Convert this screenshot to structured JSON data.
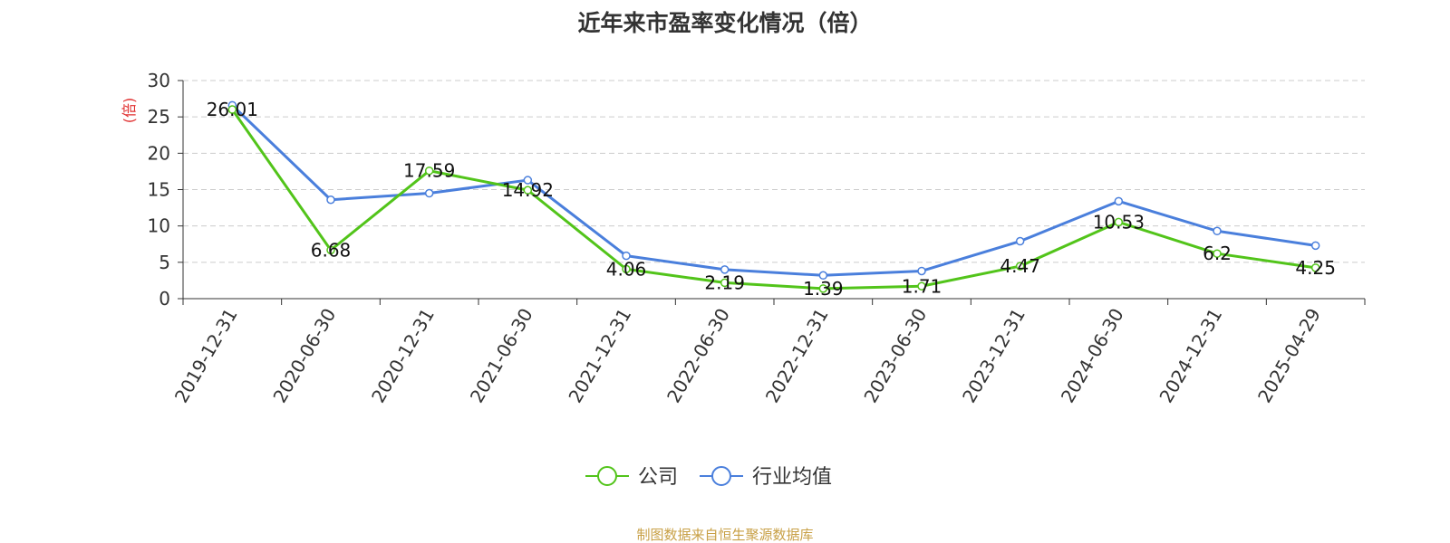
{
  "chart_data": {
    "type": "line",
    "title": "近年来市盈率变化情况（倍）",
    "ylabel": "(倍)",
    "xlabel": "",
    "ylim": [
      0,
      30
    ],
    "yticks": [
      0,
      5,
      10,
      15,
      20,
      25,
      30
    ],
    "grid": true,
    "legend_position": "bottom-center",
    "categories": [
      "2019-12-31",
      "2020-06-30",
      "2020-12-31",
      "2021-06-30",
      "2021-12-31",
      "2022-06-30",
      "2022-12-31",
      "2023-06-30",
      "2023-12-31",
      "2024-06-30",
      "2024-12-31",
      "2025-04-29"
    ],
    "series": [
      {
        "name": "公司",
        "color": "#52c41a",
        "values": [
          26.01,
          6.68,
          17.59,
          14.92,
          4.06,
          2.19,
          1.39,
          1.71,
          4.47,
          10.53,
          6.2,
          4.25
        ],
        "labels": [
          "26.01",
          "6.68",
          "17.59",
          "14.92",
          "4.06",
          "2.19",
          "1.39",
          "1.71",
          "4.47",
          "10.53",
          "6.2",
          "4.25"
        ]
      },
      {
        "name": "行业均值",
        "color": "#4a7fdc",
        "values": [
          26.6,
          13.6,
          14.5,
          16.3,
          5.9,
          4.0,
          3.2,
          3.8,
          7.9,
          13.4,
          9.3,
          7.3
        ]
      }
    ]
  },
  "colors": {
    "ylabel": "#e03030",
    "source_note": "#c8a046",
    "grid": "#cccccc",
    "axis": "#333333"
  },
  "source_note": "制图数据来自恒生聚源数据库"
}
